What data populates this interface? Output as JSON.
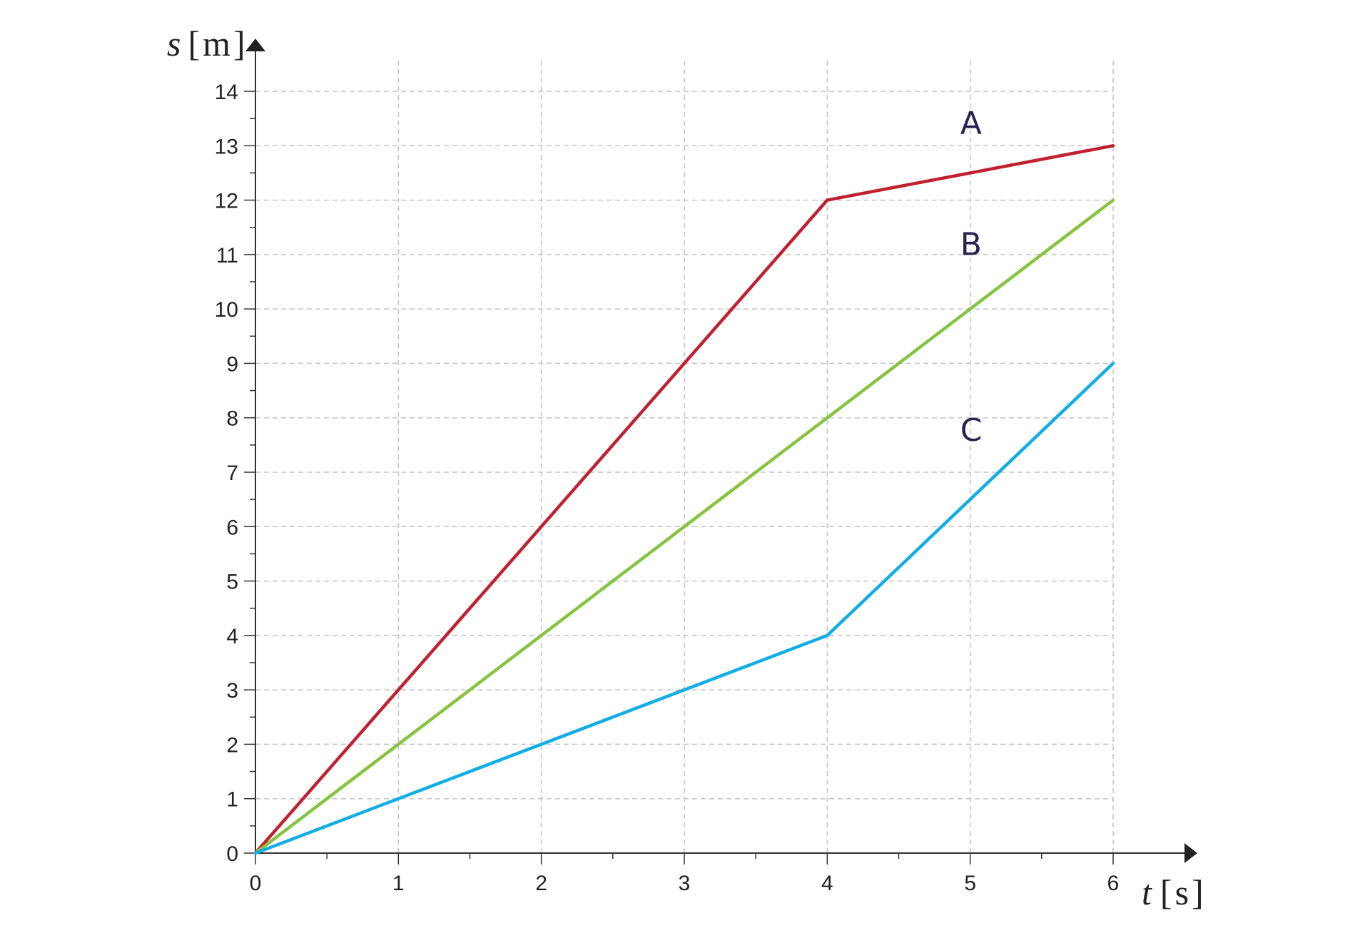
{
  "chart_data": {
    "type": "line",
    "x_axis": {
      "variable": "t",
      "unit_open": "[",
      "unit": "s",
      "unit_close": "]",
      "range": [
        0,
        6
      ],
      "ticks": [
        0,
        1,
        2,
        3,
        4,
        5,
        6
      ],
      "minor_step": 0.5
    },
    "y_axis": {
      "variable": "s",
      "unit_open": "[",
      "unit": "m",
      "unit_close": "]",
      "range": [
        0,
        14
      ],
      "ticks": [
        0,
        1,
        2,
        3,
        4,
        5,
        6,
        7,
        8,
        9,
        10,
        11,
        12,
        13,
        14
      ],
      "minor_step": 0.5
    },
    "grid": true,
    "grid_style": "dashed",
    "series": [
      {
        "name": "A",
        "color": "#c0202f",
        "label_color": "#262350",
        "points": [
          [
            0,
            0
          ],
          [
            4,
            12
          ],
          [
            6,
            13
          ]
        ]
      },
      {
        "name": "B",
        "color": "#86c440",
        "label_color": "#262350",
        "points": [
          [
            0,
            0
          ],
          [
            6,
            12
          ]
        ]
      },
      {
        "name": "C",
        "color": "#11aee6",
        "label_color": "#262350",
        "points": [
          [
            0,
            0
          ],
          [
            4,
            4
          ],
          [
            6,
            9
          ]
        ]
      }
    ]
  }
}
